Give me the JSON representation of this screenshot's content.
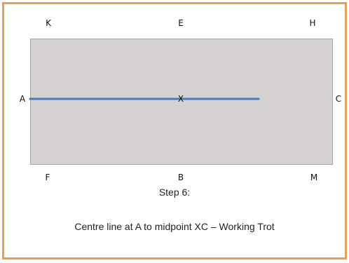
{
  "arena": {
    "markers": {
      "k": "K",
      "e": "E",
      "h": "H",
      "a": "A",
      "x": "X",
      "c": "C",
      "f": "F",
      "b": "B",
      "m": "M"
    },
    "line_color": "#4a7bb6"
  },
  "caption": {
    "step": "Step 6:",
    "description": "Centre line at A to midpoint XC – Working Trot"
  }
}
